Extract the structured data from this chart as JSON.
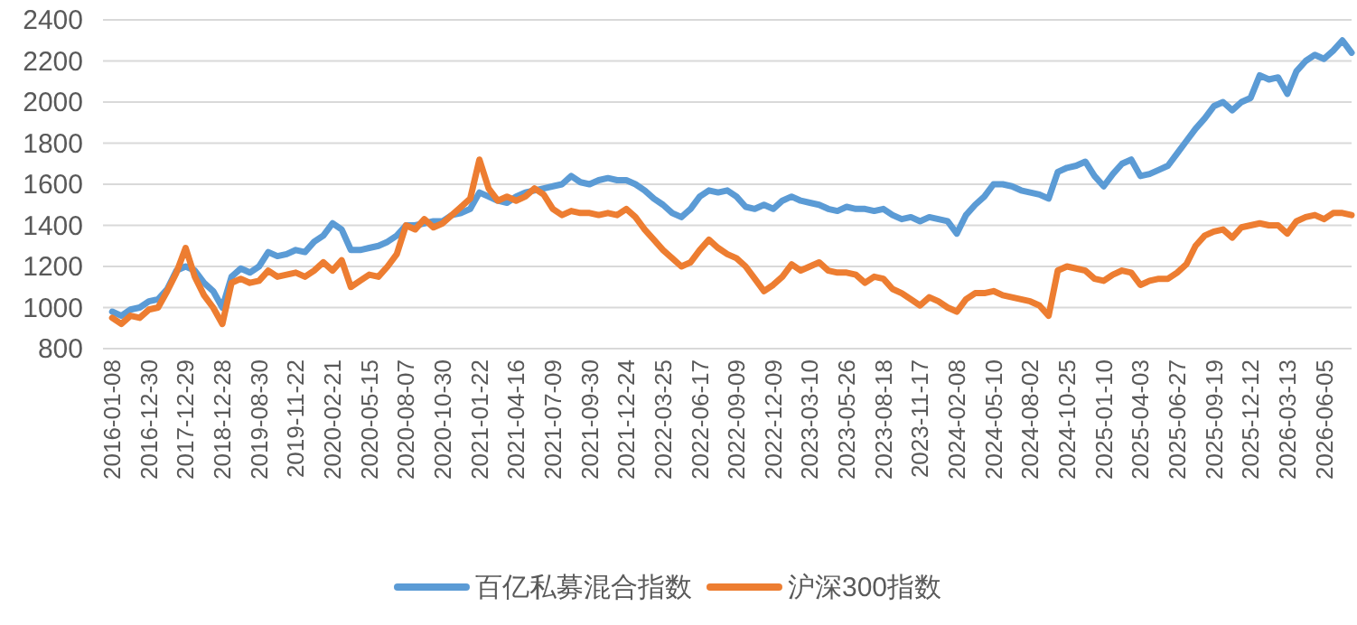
{
  "chart_data": {
    "type": "line",
    "categories": [
      "2016-01-08",
      null,
      null,
      null,
      "2016-12-30",
      null,
      null,
      null,
      "2017-12-29",
      null,
      null,
      null,
      "2018-12-28",
      null,
      null,
      null,
      "2019-08-30",
      null,
      null,
      null,
      "2019-11-22",
      null,
      null,
      null,
      "2020-02-21",
      null,
      null,
      null,
      "2020-05-15",
      null,
      null,
      null,
      "2020-08-07",
      null,
      null,
      null,
      "2020-10-30",
      null,
      null,
      null,
      "2021-01-22",
      null,
      null,
      null,
      "2021-04-16",
      null,
      null,
      null,
      "2021-07-09",
      null,
      null,
      null,
      "2021-09-30",
      null,
      null,
      null,
      "2021-12-24",
      null,
      null,
      null,
      "2022-03-25",
      null,
      null,
      null,
      "2022-06-17",
      null,
      null,
      null,
      "2022-09-09",
      null,
      null,
      null,
      "2022-12-09",
      null,
      null,
      null,
      "2023-03-10",
      null,
      null,
      null,
      "2023-05-26",
      null,
      null,
      null,
      "2023-08-18",
      null,
      null,
      null,
      "2023-11-17",
      null,
      null,
      null,
      "2024-02-08",
      null,
      null,
      null,
      "2024-05-10",
      null,
      null,
      null,
      "2024-08-02",
      null,
      null,
      null,
      "2024-10-25",
      null,
      null,
      null,
      "2025-01-10",
      null,
      null,
      null,
      "2025-04-03",
      null,
      null,
      null,
      "2025-06-27",
      null,
      null,
      null,
      "2025-09-19",
      null,
      null,
      null,
      "2025-12-12",
      null,
      null,
      null,
      "2026-03-13",
      null,
      null,
      null,
      "2026-06-05",
      null,
      null,
      null
    ],
    "series": [
      {
        "name": "百亿私募混合指数",
        "color": "#5b9bd5",
        "values": [
          980,
          960,
          990,
          1000,
          1030,
          1040,
          1090,
          1180,
          1200,
          1180,
          1120,
          1080,
          1000,
          1150,
          1190,
          1170,
          1200,
          1270,
          1250,
          1260,
          1280,
          1270,
          1320,
          1350,
          1410,
          1380,
          1280,
          1280,
          1290,
          1300,
          1320,
          1350,
          1400,
          1400,
          1410,
          1420,
          1420,
          1450,
          1460,
          1480,
          1560,
          1540,
          1520,
          1510,
          1540,
          1560,
          1570,
          1580,
          1590,
          1600,
          1640,
          1610,
          1600,
          1620,
          1630,
          1620,
          1620,
          1600,
          1570,
          1530,
          1500,
          1460,
          1440,
          1480,
          1540,
          1570,
          1560,
          1570,
          1540,
          1490,
          1480,
          1500,
          1480,
          1520,
          1540,
          1520,
          1510,
          1500,
          1480,
          1470,
          1490,
          1480,
          1480,
          1470,
          1480,
          1450,
          1430,
          1440,
          1420,
          1440,
          1430,
          1420,
          1360,
          1450,
          1500,
          1540,
          1600,
          1600,
          1590,
          1570,
          1560,
          1550,
          1530,
          1660,
          1680,
          1690,
          1710,
          1640,
          1590,
          1650,
          1700,
          1720,
          1640,
          1650,
          1670,
          1690,
          1750,
          1810,
          1870,
          1920,
          1980,
          2000,
          1960,
          2000,
          2020,
          2130,
          2110,
          2120,
          2040,
          2150,
          2200,
          2230,
          2210,
          2250,
          2300,
          2240
        ]
      },
      {
        "name": "沪深300指数",
        "color": "#ed7d31",
        "values": [
          950,
          920,
          960,
          950,
          990,
          1000,
          1080,
          1170,
          1290,
          1150,
          1060,
          1000,
          920,
          1120,
          1140,
          1120,
          1130,
          1180,
          1150,
          1160,
          1170,
          1150,
          1180,
          1220,
          1180,
          1230,
          1100,
          1130,
          1160,
          1150,
          1200,
          1260,
          1400,
          1380,
          1430,
          1390,
          1410,
          1450,
          1490,
          1530,
          1720,
          1580,
          1520,
          1540,
          1520,
          1540,
          1580,
          1550,
          1480,
          1450,
          1470,
          1460,
          1460,
          1450,
          1460,
          1450,
          1480,
          1440,
          1380,
          1330,
          1280,
          1240,
          1200,
          1220,
          1280,
          1330,
          1290,
          1260,
          1240,
          1200,
          1140,
          1080,
          1110,
          1150,
          1210,
          1180,
          1200,
          1220,
          1180,
          1170,
          1170,
          1160,
          1120,
          1150,
          1140,
          1090,
          1070,
          1040,
          1010,
          1050,
          1030,
          1000,
          980,
          1040,
          1070,
          1070,
          1080,
          1060,
          1050,
          1040,
          1030,
          1010,
          960,
          1180,
          1200,
          1190,
          1180,
          1140,
          1130,
          1160,
          1180,
          1170,
          1110,
          1130,
          1140,
          1140,
          1170,
          1210,
          1300,
          1350,
          1370,
          1380,
          1340,
          1390,
          1400,
          1410,
          1400,
          1400,
          1360,
          1420,
          1440,
          1450,
          1430,
          1460,
          1460,
          1450
        ]
      }
    ],
    "ylim": [
      800,
      2400
    ],
    "yticks": [
      800,
      1000,
      1200,
      1400,
      1600,
      1800,
      2000,
      2200,
      2400
    ],
    "grid": "y",
    "legend": "bottom",
    "line_style": "solid",
    "marker": "none"
  }
}
